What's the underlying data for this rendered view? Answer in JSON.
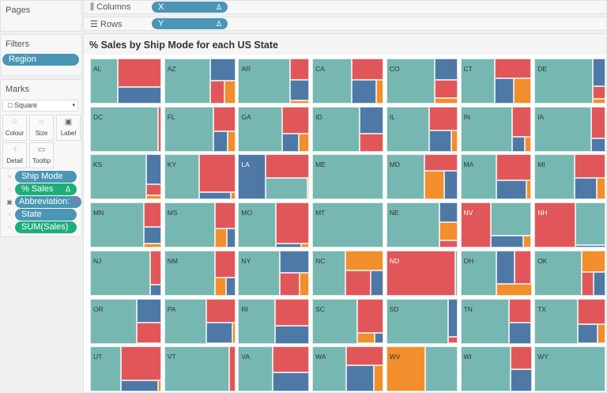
{
  "left": {
    "pages_title": "Pages",
    "filters_title": "Filters",
    "filters": [
      {
        "label": "Region"
      }
    ],
    "marks_title": "Marks",
    "mark_type": "Square",
    "mark_buttons": [
      {
        "label": "Colour",
        "icon": "colour-dots-icon"
      },
      {
        "label": "Size",
        "icon": "size-icon"
      },
      {
        "label": "Label",
        "icon": "label-icon"
      },
      {
        "label": "Detail",
        "icon": "detail-icon"
      },
      {
        "label": "Tooltip",
        "icon": "tooltip-icon"
      }
    ],
    "mark_pills": [
      {
        "label": "Ship Mode",
        "kind": "dimension",
        "icon": "colour-dots-icon"
      },
      {
        "label": "% Sales",
        "kind": "measure",
        "icon": "size-icon",
        "badge": "Δ"
      },
      {
        "label": "Abbreviation:",
        "kind": "dimension",
        "icon": "label-icon"
      },
      {
        "label": "State",
        "kind": "dimension",
        "icon": "detail-icon"
      },
      {
        "label": "SUM(Sales)",
        "kind": "measure",
        "icon": "detail-icon"
      }
    ]
  },
  "shelves": {
    "columns_label": "Columns",
    "columns_pill": "X",
    "columns_badge": "Δ",
    "rows_label": "Rows",
    "rows_pill": "Y",
    "rows_badge": "Δ"
  },
  "colors": {
    "teal": "#76b7b2",
    "red": "#e15759",
    "blue": "#4e79a7",
    "orange": "#f28e2b",
    "dimension_pill": "#4a96b4",
    "measure_pill": "#1fae7a"
  },
  "chart_data": {
    "type": "treemap-grid",
    "title": "% Sales by Ship Mode for each US State",
    "columns": 7,
    "states": [
      {
        "s": "AL",
        "v": {
          "teal": 39,
          "red": 39,
          "blue": 22,
          "orange": 0
        }
      },
      {
        "s": "AZ",
        "v": {
          "teal": 65,
          "red": 10,
          "blue": 17,
          "orange": 8
        }
      },
      {
        "s": "AR",
        "v": {
          "teal": 73,
          "red": 13,
          "blue": 12,
          "orange": 2
        }
      },
      {
        "s": "CA",
        "v": {
          "teal": 56,
          "red": 21,
          "blue": 18,
          "orange": 5
        }
      },
      {
        "s": "CO",
        "v": {
          "teal": 68,
          "red": 13,
          "blue": 15,
          "orange": 4
        }
      },
      {
        "s": "CT",
        "v": {
          "teal": 48,
          "red": 23,
          "blue": 15,
          "orange": 14
        }
      },
      {
        "s": "DE",
        "v": {
          "teal": 82,
          "red": 5,
          "blue": 11,
          "orange": 2
        }
      },
      {
        "s": "DC",
        "v": {
          "teal": 96,
          "red": 4,
          "blue": 0,
          "orange": 0
        }
      },
      {
        "s": "FL",
        "v": {
          "teal": 69,
          "red": 17,
          "blue": 9,
          "orange": 5
        }
      },
      {
        "s": "GA",
        "v": {
          "teal": 62,
          "red": 23,
          "blue": 9,
          "orange": 6
        }
      },
      {
        "s": "ID",
        "v": {
          "teal": 67,
          "red": 13,
          "blue": 20,
          "orange": 0
        }
      },
      {
        "s": "IL",
        "v": {
          "teal": 60,
          "red": 21,
          "blue": 15,
          "orange": 4
        }
      },
      {
        "s": "IN",
        "v": {
          "teal": 73,
          "red": 18,
          "blue": 6,
          "orange": 3
        }
      },
      {
        "s": "IA",
        "v": {
          "teal": 80,
          "red": 14,
          "blue": 6,
          "orange": 0
        }
      },
      {
        "s": "KS",
        "v": {
          "teal": 79,
          "red": 5,
          "blue": 14,
          "orange": 2
        }
      },
      {
        "s": "KY",
        "v": {
          "teal": 49,
          "red": 43,
          "blue": 7,
          "orange": 1
        }
      },
      {
        "s": "LA",
        "v": {
          "teal": 28,
          "red": 32,
          "blue": 39,
          "orange": 1
        }
      },
      {
        "s": "ME",
        "v": {
          "teal": 100,
          "red": 0,
          "blue": 0,
          "orange": 0
        }
      },
      {
        "s": "MD",
        "v": {
          "teal": 54,
          "red": 17,
          "blue": 12,
          "orange": 17
        }
      },
      {
        "s": "MA",
        "v": {
          "teal": 51,
          "red": 28,
          "blue": 18,
          "orange": 3
        }
      },
      {
        "s": "MI",
        "v": {
          "teal": 57,
          "red": 22,
          "blue": 15,
          "orange": 6
        }
      },
      {
        "s": "MN",
        "v": {
          "teal": 76,
          "red": 13,
          "blue": 9,
          "orange": 2
        }
      },
      {
        "s": "MS",
        "v": {
          "teal": 72,
          "red": 16,
          "blue": 5,
          "orange": 7
        }
      },
      {
        "s": "MO",
        "v": {
          "teal": 53,
          "red": 43,
          "blue": 3,
          "orange": 1
        }
      },
      {
        "s": "MT",
        "v": {
          "teal": 100,
          "red": 0,
          "blue": 0,
          "orange": 0
        }
      },
      {
        "s": "NE",
        "v": {
          "teal": 75,
          "red": 4,
          "blue": 11,
          "orange": 10
        }
      },
      {
        "s": "NV",
        "v": {
          "teal": 42,
          "red": 43,
          "blue": 12,
          "orange": 3
        }
      },
      {
        "s": "NH",
        "v": {
          "teal": 40,
          "red": 58,
          "blue": 2,
          "orange": 0
        }
      },
      {
        "s": "NJ",
        "v": {
          "teal": 84,
          "red": 12,
          "blue": 4,
          "orange": 0
        }
      },
      {
        "s": "NM",
        "v": {
          "teal": 72,
          "red": 17,
          "blue": 5,
          "orange": 6
        }
      },
      {
        "s": "NY",
        "v": {
          "teal": 58,
          "red": 14,
          "blue": 21,
          "orange": 7
        }
      },
      {
        "s": "NC",
        "v": {
          "teal": 47,
          "red": 20,
          "blue": 10,
          "orange": 23
        }
      },
      {
        "s": "ND",
        "v": {
          "teal": 3,
          "red": 97,
          "blue": 0,
          "orange": 0
        }
      },
      {
        "s": "OH",
        "v": {
          "teal": 50,
          "red": 18,
          "blue": 19,
          "orange": 13
        }
      },
      {
        "s": "OK",
        "v": {
          "teal": 66,
          "red": 9,
          "blue": 9,
          "orange": 16
        }
      },
      {
        "s": "OR",
        "v": {
          "teal": 66,
          "red": 16,
          "blue": 18,
          "orange": 0
        }
      },
      {
        "s": "PA",
        "v": {
          "teal": 59,
          "red": 22,
          "blue": 17,
          "orange": 2
        }
      },
      {
        "s": "RI",
        "v": {
          "teal": 52,
          "red": 29,
          "blue": 19,
          "orange": 0
        }
      },
      {
        "s": "SC",
        "v": {
          "teal": 63,
          "red": 28,
          "blue": 3,
          "orange": 6
        }
      },
      {
        "s": "SD",
        "v": {
          "teal": 87,
          "red": 2,
          "blue": 11,
          "orange": 0
        }
      },
      {
        "s": "TN",
        "v": {
          "teal": 68,
          "red": 17,
          "blue": 15,
          "orange": 0
        }
      },
      {
        "s": "TX",
        "v": {
          "teal": 61,
          "red": 22,
          "blue": 12,
          "orange": 5
        }
      },
      {
        "s": "UT",
        "v": {
          "teal": 43,
          "red": 43,
          "blue": 13,
          "orange": 1
        }
      },
      {
        "s": "VT",
        "v": {
          "teal": 92,
          "red": 8,
          "blue": 0,
          "orange": 0
        }
      },
      {
        "s": "VA",
        "v": {
          "teal": 48,
          "red": 30,
          "blue": 22,
          "orange": 0
        }
      },
      {
        "s": "WA",
        "v": {
          "teal": 48,
          "red": 22,
          "blue": 22,
          "orange": 8
        }
      },
      {
        "s": "WV",
        "v": {
          "teal": 45,
          "red": 0,
          "blue": 0,
          "orange": 55
        }
      },
      {
        "s": "WI",
        "v": {
          "teal": 70,
          "red": 15,
          "blue": 15,
          "orange": 0
        }
      },
      {
        "s": "WY",
        "v": {
          "teal": 100,
          "red": 0,
          "blue": 0,
          "orange": 0
        }
      }
    ]
  }
}
